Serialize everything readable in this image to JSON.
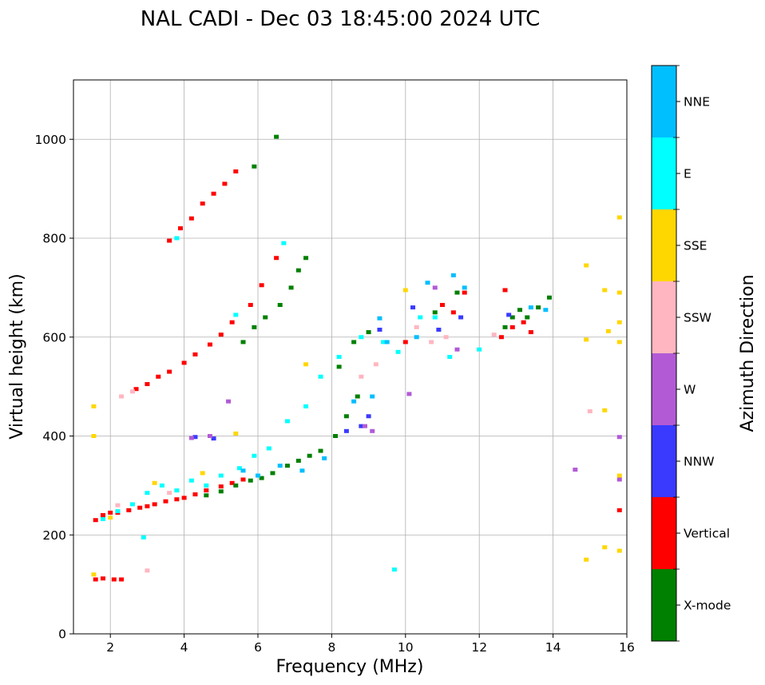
{
  "chart_data": {
    "type": "scatter",
    "title": "NAL CADI - Dec 03 18:45:00 2024 UTC",
    "xlabel": "Frequency (MHz)",
    "ylabel": "Virtual height (km)",
    "xlim": [
      1,
      16
    ],
    "ylim": [
      0,
      1120
    ],
    "xticks": [
      2,
      4,
      6,
      8,
      10,
      12,
      14,
      16
    ],
    "yticks": [
      0,
      200,
      400,
      600,
      800,
      1000
    ],
    "grid": true,
    "colorbar": {
      "label": "Azimuth Direction",
      "categories": [
        {
          "name": "X-mode",
          "color": "#008000"
        },
        {
          "name": "Vertical",
          "color": "#ff0000"
        },
        {
          "name": "NNW",
          "color": "#3a3aff"
        },
        {
          "name": "W",
          "color": "#b25ad6"
        },
        {
          "name": "SSW",
          "color": "#ffb6c1"
        },
        {
          "name": "SSE",
          "color": "#ffd700"
        },
        {
          "name": "E",
          "color": "#00ffff"
        },
        {
          "name": "NNE",
          "color": "#00bfff"
        }
      ]
    },
    "series": [
      {
        "name": "Vertical",
        "points": [
          [
            1.6,
            230
          ],
          [
            1.8,
            240
          ],
          [
            2.0,
            245
          ],
          [
            2.2,
            245
          ],
          [
            2.5,
            250
          ],
          [
            2.8,
            255
          ],
          [
            3.0,
            258
          ],
          [
            3.2,
            262
          ],
          [
            3.5,
            268
          ],
          [
            3.8,
            272
          ],
          [
            4.0,
            275
          ],
          [
            4.3,
            282
          ],
          [
            4.6,
            290
          ],
          [
            5.0,
            298
          ],
          [
            5.3,
            305
          ],
          [
            5.6,
            312
          ],
          [
            1.6,
            110
          ],
          [
            1.8,
            112
          ],
          [
            2.1,
            110
          ],
          [
            2.3,
            110
          ],
          [
            2.7,
            495
          ],
          [
            3.0,
            505
          ],
          [
            3.3,
            520
          ],
          [
            3.6,
            530
          ],
          [
            4.0,
            548
          ],
          [
            4.3,
            565
          ],
          [
            4.7,
            585
          ],
          [
            5.0,
            605
          ],
          [
            5.3,
            630
          ],
          [
            5.8,
            665
          ],
          [
            6.1,
            705
          ],
          [
            6.5,
            760
          ],
          [
            3.6,
            795
          ],
          [
            3.9,
            820
          ],
          [
            4.2,
            840
          ],
          [
            4.5,
            870
          ],
          [
            4.8,
            890
          ],
          [
            5.1,
            910
          ],
          [
            5.4,
            935
          ],
          [
            11.0,
            665
          ],
          [
            11.3,
            650
          ],
          [
            11.6,
            690
          ],
          [
            12.6,
            600
          ],
          [
            12.9,
            620
          ],
          [
            13.2,
            630
          ],
          [
            13.4,
            610
          ],
          [
            15.8,
            250
          ],
          [
            12.7,
            695
          ],
          [
            10.0,
            590
          ]
        ]
      },
      {
        "name": "X-mode",
        "points": [
          [
            4.6,
            280
          ],
          [
            5.0,
            288
          ],
          [
            5.4,
            300
          ],
          [
            5.8,
            310
          ],
          [
            6.1,
            315
          ],
          [
            6.4,
            325
          ],
          [
            6.8,
            340
          ],
          [
            7.1,
            350
          ],
          [
            7.4,
            360
          ],
          [
            7.7,
            370
          ],
          [
            8.1,
            400
          ],
          [
            8.4,
            440
          ],
          [
            8.7,
            480
          ],
          [
            8.2,
            540
          ],
          [
            8.6,
            590
          ],
          [
            9.0,
            610
          ],
          [
            5.6,
            590
          ],
          [
            5.9,
            620
          ],
          [
            6.2,
            640
          ],
          [
            6.6,
            665
          ],
          [
            6.9,
            700
          ],
          [
            7.1,
            735
          ],
          [
            7.3,
            760
          ],
          [
            12.7,
            620
          ],
          [
            12.9,
            640
          ],
          [
            13.1,
            655
          ],
          [
            13.3,
            640
          ],
          [
            13.6,
            660
          ],
          [
            13.9,
            680
          ],
          [
            6.5,
            1005
          ],
          [
            5.9,
            945
          ],
          [
            11.4,
            690
          ],
          [
            10.8,
            650
          ]
        ]
      },
      {
        "name": "NNW",
        "points": [
          [
            8.4,
            410
          ],
          [
            8.8,
            420
          ],
          [
            9.0,
            440
          ],
          [
            4.3,
            398
          ],
          [
            4.8,
            395
          ],
          [
            9.3,
            615
          ],
          [
            10.2,
            660
          ],
          [
            10.9,
            615
          ],
          [
            11.5,
            640
          ],
          [
            12.8,
            645
          ]
        ]
      },
      {
        "name": "W",
        "points": [
          [
            4.2,
            396
          ],
          [
            4.7,
            400
          ],
          [
            5.2,
            470
          ],
          [
            8.9,
            420
          ],
          [
            9.1,
            410
          ],
          [
            14.6,
            332
          ],
          [
            15.8,
            312
          ],
          [
            15.8,
            398
          ],
          [
            10.1,
            485
          ],
          [
            10.8,
            700
          ],
          [
            11.4,
            575
          ]
        ]
      },
      {
        "name": "SSW",
        "points": [
          [
            3.0,
            128
          ],
          [
            2.3,
            480
          ],
          [
            2.6,
            490
          ],
          [
            8.8,
            520
          ],
          [
            9.2,
            545
          ],
          [
            10.3,
            620
          ],
          [
            10.7,
            590
          ],
          [
            11.1,
            600
          ],
          [
            15.0,
            450
          ],
          [
            2.2,
            260
          ],
          [
            3.6,
            285
          ],
          [
            12.4,
            605
          ]
        ]
      },
      {
        "name": "SSE",
        "points": [
          [
            1.55,
            460
          ],
          [
            1.55,
            400
          ],
          [
            1.55,
            120
          ],
          [
            2.0,
            235
          ],
          [
            3.2,
            305
          ],
          [
            4.5,
            325
          ],
          [
            5.4,
            405
          ],
          [
            7.3,
            545
          ],
          [
            10.0,
            695
          ],
          [
            14.9,
            745
          ],
          [
            15.4,
            695
          ],
          [
            15.5,
            612
          ],
          [
            15.8,
            630
          ],
          [
            15.8,
            590
          ],
          [
            14.9,
            595
          ],
          [
            15.8,
            842
          ],
          [
            15.8,
            690
          ],
          [
            15.8,
            320
          ],
          [
            15.4,
            175
          ],
          [
            15.8,
            168
          ],
          [
            14.9,
            150
          ],
          [
            15.4,
            452
          ]
        ]
      },
      {
        "name": "E",
        "points": [
          [
            1.8,
            232
          ],
          [
            2.2,
            248
          ],
          [
            2.6,
            262
          ],
          [
            3.0,
            285
          ],
          [
            3.4,
            300
          ],
          [
            3.8,
            290
          ],
          [
            4.2,
            310
          ],
          [
            4.6,
            300
          ],
          [
            5.0,
            320
          ],
          [
            5.5,
            335
          ],
          [
            5.9,
            360
          ],
          [
            6.3,
            375
          ],
          [
            6.8,
            430
          ],
          [
            7.3,
            460
          ],
          [
            7.7,
            520
          ],
          [
            8.2,
            560
          ],
          [
            8.8,
            600
          ],
          [
            9.4,
            590
          ],
          [
            9.8,
            570
          ],
          [
            10.4,
            640
          ],
          [
            10.8,
            640
          ],
          [
            11.2,
            560
          ],
          [
            12.0,
            575
          ],
          [
            3.8,
            800
          ],
          [
            5.4,
            645
          ],
          [
            6.7,
            790
          ],
          [
            9.7,
            130
          ],
          [
            2.9,
            195
          ]
        ]
      },
      {
        "name": "NNE",
        "points": [
          [
            5.6,
            330
          ],
          [
            6.0,
            320
          ],
          [
            6.6,
            340
          ],
          [
            7.2,
            330
          ],
          [
            7.8,
            355
          ],
          [
            8.6,
            470
          ],
          [
            9.1,
            480
          ],
          [
            9.5,
            590
          ],
          [
            10.6,
            710
          ],
          [
            11.3,
            725
          ],
          [
            11.6,
            700
          ],
          [
            13.4,
            660
          ],
          [
            13.8,
            655
          ],
          [
            9.3,
            638
          ],
          [
            10.3,
            600
          ]
        ]
      }
    ]
  }
}
